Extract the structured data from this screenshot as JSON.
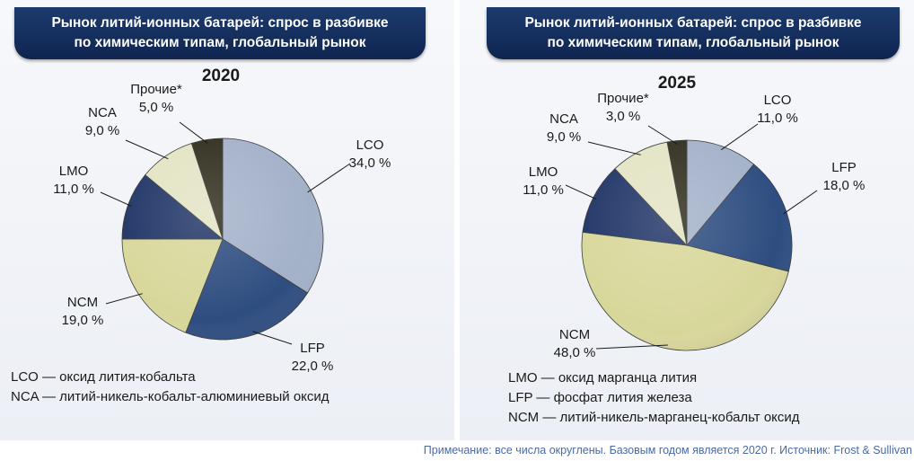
{
  "charts": [
    {
      "title_line1": "Рынок литий-ионных батарей: спрос в разбивке",
      "title_line2": "по химическим типам, глобальный рынок",
      "year": "2020",
      "legend": [
        "LCO — оксид лития-кобальта",
        "NCA — литий-никель-кобальт-алюминиевый оксид"
      ]
    },
    {
      "title_line1": "Рынок литий-ионных батарей: спрос в разбивке",
      "title_line2": "по химическим типам, глобальный рынок",
      "year": "2025",
      "legend": [
        "LMO — оксид марганца лития",
        "LFP — фосфат лития железа",
        "NCM — литий-никель-марганец-кобальт оксид"
      ]
    }
  ],
  "footnote": "Примечание: все числа округлены. Базовым годом является 2020 г. Источник: Frost & Sullivan",
  "colors": {
    "LCO": "#a3b1c9",
    "LFP": "#2e4d80",
    "NCM": "#d8d79a",
    "LMO": "#1f3466",
    "NCA": "#e3e3c4",
    "Прочие*": "#2f2d1c"
  },
  "chart_data": [
    {
      "type": "pie",
      "title": "Рынок литий-ионных батарей: спрос в разбивке по химическим типам, глобальный рынок — 2020",
      "labels": [
        "LCO",
        "LFP",
        "NCM",
        "LMO",
        "NCA",
        "Прочие*"
      ],
      "values": [
        34.0,
        22.0,
        19.0,
        11.0,
        9.0,
        5.0
      ],
      "value_labels": [
        "34,0 %",
        "22,0 %",
        "19,0 %",
        "11,0 %",
        "9,0 %",
        "5,0 %"
      ]
    },
    {
      "type": "pie",
      "title": "Рынок литий-ионных батарей: спрос в разбивке по химическим типам, глобальный рынок — 2025",
      "labels": [
        "LCO",
        "LFP",
        "NCM",
        "LMO",
        "NCA",
        "Прочие*"
      ],
      "values": [
        11.0,
        18.0,
        48.0,
        11.0,
        9.0,
        3.0
      ],
      "value_labels": [
        "11,0 %",
        "18,0 %",
        "48,0 %",
        "11,0 %",
        "9,0 %",
        "3,0 %"
      ]
    }
  ]
}
